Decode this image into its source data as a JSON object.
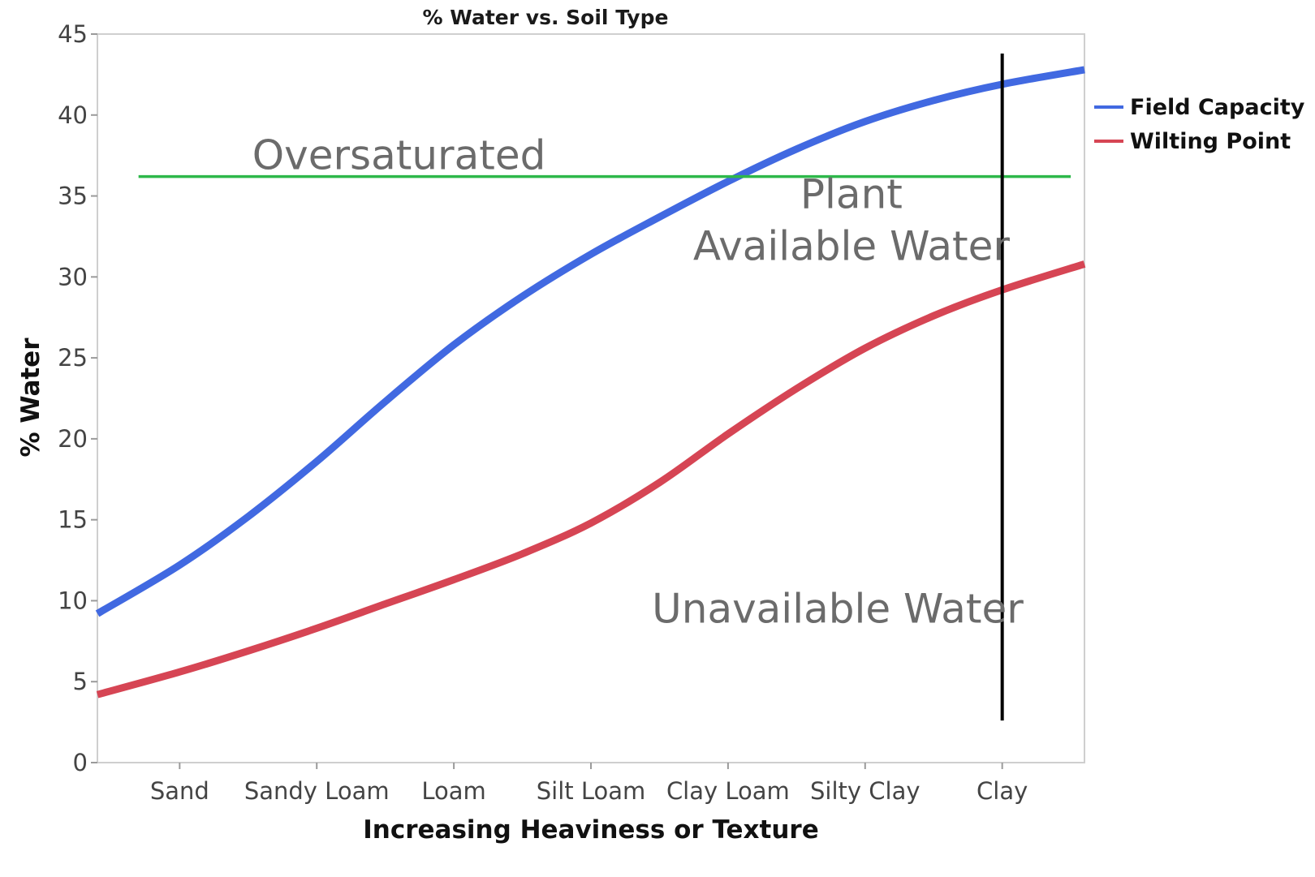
{
  "chart_data": {
    "type": "line",
    "title": "% Water vs. Soil Type",
    "xlabel": "Increasing Heaviness or Texture",
    "ylabel": "% Water",
    "categories": [
      "Sand",
      "Sandy Loam",
      "Loam",
      "Silt Loam",
      "Clay Loam",
      "Silty Clay",
      "Clay"
    ],
    "x_range": [
      -0.6,
      6.6
    ],
    "ylim": [
      0,
      45
    ],
    "y_ticks": [
      0,
      5,
      10,
      15,
      20,
      25,
      30,
      35,
      40,
      45
    ],
    "grid": false,
    "legend_position": "right",
    "series": [
      {
        "name": "Field Capacity",
        "color": "#4169E1",
        "x": [
          -0.6,
          0,
          0.5,
          1,
          1.5,
          2,
          2.5,
          3,
          3.5,
          4,
          4.5,
          5,
          5.5,
          6,
          6.6
        ],
        "values": [
          9.2,
          12.2,
          15.2,
          18.6,
          22.3,
          25.8,
          28.8,
          31.4,
          33.7,
          35.9,
          37.9,
          39.6,
          40.9,
          41.9,
          42.8
        ]
      },
      {
        "name": "Wilting Point",
        "color": "#D64554",
        "x": [
          -0.6,
          0,
          0.5,
          1,
          1.5,
          2,
          2.5,
          3,
          3.5,
          4,
          4.5,
          5,
          5.5,
          6,
          6.6
        ],
        "values": [
          4.2,
          5.6,
          6.9,
          8.3,
          9.8,
          11.3,
          12.9,
          14.8,
          17.3,
          20.3,
          23.1,
          25.6,
          27.6,
          29.2,
          30.8
        ]
      }
    ],
    "reference_lines": [
      {
        "orientation": "horizontal",
        "value": 36.2,
        "x_start": -0.3,
        "x_end": 6.5,
        "color": "#2DB84A"
      },
      {
        "orientation": "vertical",
        "value": 6.0,
        "y_start": 2.6,
        "y_end": 43.8,
        "color": "#000000"
      }
    ],
    "annotations": [
      {
        "lines": [
          "Oversaturated"
        ],
        "x": 1.6,
        "y": 37.5
      },
      {
        "lines": [
          "Plant",
          "Available Water"
        ],
        "x": 4.9,
        "y": 33.5
      },
      {
        "lines": [
          "Unavailable Water"
        ],
        "x": 4.8,
        "y": 9.5
      }
    ]
  }
}
